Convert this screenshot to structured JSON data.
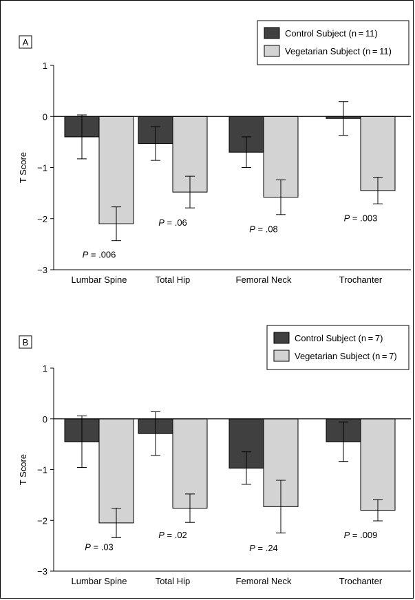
{
  "chart_data": [
    {
      "type": "bar",
      "panel_label": "A",
      "ylabel": "T Score",
      "ylim": [
        -3,
        1
      ],
      "yticks": [
        1,
        0,
        -1,
        -2,
        -3
      ],
      "categories": [
        "Lumbar Spine",
        "Total Hip",
        "Femoral Neck",
        "Trochanter"
      ],
      "series": [
        {
          "name": "Control Subject (n = 11)",
          "color": "#404040",
          "values": [
            -0.4,
            -0.53,
            -0.7,
            -0.04
          ],
          "error": [
            0.43,
            0.33,
            0.3,
            0.33
          ]
        },
        {
          "name": "Vegetarian Subject (n = 11)",
          "color": "#d3d3d3",
          "values": [
            -2.1,
            -1.48,
            -1.58,
            -1.45
          ],
          "error": [
            0.33,
            0.31,
            0.34,
            0.26
          ]
        }
      ],
      "annotations": [
        {
          "category": 0,
          "p_value": ".006",
          "y": -2.7
        },
        {
          "category": 1,
          "p_value": ".06",
          "y": -2.07
        },
        {
          "category": 2,
          "p_value": ".08",
          "y": -2.2
        },
        {
          "category": 3,
          "p_value": ".003",
          "y": -1.98
        }
      ],
      "legend_position": "top-right"
    },
    {
      "type": "bar",
      "panel_label": "B",
      "ylabel": "T Score",
      "ylim": [
        -3,
        1
      ],
      "yticks": [
        1,
        0,
        -1,
        -2,
        -3
      ],
      "categories": [
        "Lumbar Spine",
        "Total Hip",
        "Femoral Neck",
        "Trochanter"
      ],
      "series": [
        {
          "name": "Control Subject (n = 7)",
          "color": "#404040",
          "values": [
            -0.45,
            -0.29,
            -0.97,
            -0.45
          ],
          "error": [
            0.51,
            0.43,
            0.32,
            0.39
          ]
        },
        {
          "name": "Vegetarian Subject (n = 7)",
          "color": "#d3d3d3",
          "values": [
            -2.05,
            -1.76,
            -1.73,
            -1.8
          ],
          "error": [
            0.29,
            0.28,
            0.52,
            0.21
          ]
        }
      ],
      "annotations": [
        {
          "category": 0,
          "p_value": ".03",
          "y": -2.52
        },
        {
          "category": 1,
          "p_value": ".02",
          "y": -2.28
        },
        {
          "category": 2,
          "p_value": ".24",
          "y": -2.54
        },
        {
          "category": 3,
          "p_value": ".009",
          "y": -2.28
        }
      ],
      "legend_position": "top-right"
    }
  ],
  "p_prefix": "P",
  "p_equals": " = "
}
